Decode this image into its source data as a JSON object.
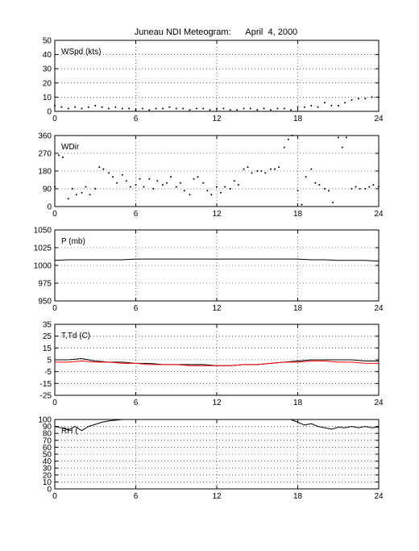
{
  "figure": {
    "title": "Juneau NDI Meteogram:      April  4, 2000"
  },
  "chart_data": [
    {
      "type": "scatter",
      "label": "WSpd (kts)",
      "xlim": [
        0,
        24
      ],
      "ylim": [
        0,
        50
      ],
      "xticks": [
        0,
        6,
        12,
        18,
        24
      ],
      "yticks": [
        0,
        10,
        20,
        30,
        40,
        50
      ],
      "grid": true,
      "series": [
        {
          "color": "#000000",
          "x": [
            0,
            0.5,
            1,
            1.5,
            2,
            2.5,
            3,
            3.5,
            4,
            4.5,
            5,
            5.5,
            6,
            6.5,
            7,
            7.5,
            8,
            8.5,
            9,
            9.5,
            10,
            10.5,
            11,
            11.5,
            12,
            12.5,
            13,
            13.5,
            14,
            14.5,
            15,
            15.5,
            16,
            16.5,
            17,
            17.5,
            18,
            18.5,
            19,
            19.5,
            20,
            20.5,
            21,
            21.5,
            22,
            22.5,
            23,
            23.5,
            24
          ],
          "y": [
            4,
            3,
            2,
            3,
            2,
            3,
            4,
            3,
            2,
            3,
            2,
            2,
            1,
            2,
            1,
            2,
            2,
            3,
            2,
            2,
            1,
            2,
            2,
            1,
            2,
            2,
            1,
            1,
            2,
            2,
            1,
            2,
            1,
            2,
            2,
            1,
            3,
            3,
            4,
            3,
            6,
            4,
            4,
            6,
            8,
            9,
            9,
            10,
            10
          ]
        }
      ]
    },
    {
      "type": "scatter",
      "label": "WDir",
      "xlim": [
        0,
        24
      ],
      "ylim": [
        0,
        360
      ],
      "xticks": [
        0,
        6,
        12,
        18,
        24
      ],
      "yticks": [
        0,
        90,
        180,
        270,
        360
      ],
      "grid": true,
      "series": [
        {
          "color": "#000000",
          "x": [
            0,
            0.3,
            0.6,
            1,
            1.3,
            1.6,
            2,
            2.3,
            2.6,
            3,
            3.3,
            3.6,
            4,
            4.3,
            4.6,
            5,
            5.3,
            5.6,
            6,
            6.3,
            6.6,
            7,
            7.3,
            7.6,
            8,
            8.3,
            8.6,
            9,
            9.3,
            9.6,
            10,
            10.3,
            10.6,
            11,
            11.3,
            11.6,
            12,
            12.3,
            12.6,
            13,
            13.3,
            13.6,
            14,
            14.3,
            14.6,
            15,
            15.3,
            15.6,
            16,
            16.3,
            16.6,
            17,
            17.3,
            17.6,
            18,
            18.3,
            18.6,
            19,
            19.3,
            19.6,
            20,
            20.3,
            20.6,
            21,
            21.3,
            21.6,
            22,
            22.3,
            22.6,
            23,
            23.3,
            23.6,
            24
          ],
          "y": [
            100,
            260,
            250,
            40,
            90,
            60,
            70,
            100,
            60,
            90,
            200,
            190,
            170,
            150,
            120,
            160,
            130,
            100,
            110,
            140,
            100,
            140,
            90,
            130,
            110,
            120,
            150,
            100,
            120,
            80,
            60,
            140,
            150,
            120,
            80,
            60,
            100,
            70,
            100,
            90,
            130,
            110,
            190,
            200,
            170,
            180,
            180,
            170,
            190,
            190,
            200,
            300,
            340,
            360,
            80,
            10,
            150,
            190,
            120,
            110,
            90,
            80,
            20,
            350,
            300,
            350,
            90,
            100,
            90,
            90,
            100,
            110,
            100
          ]
        }
      ]
    },
    {
      "type": "line",
      "label": "P (mb)",
      "xlim": [
        0,
        24
      ],
      "ylim": [
        950,
        1050
      ],
      "xticks": [
        0,
        6,
        12,
        18,
        24
      ],
      "yticks": [
        950,
        975,
        1000,
        1025,
        1050
      ],
      "grid": true,
      "series": [
        {
          "color": "#000000",
          "x": [
            0,
            1,
            2,
            3,
            4,
            5,
            6,
            7,
            8,
            9,
            10,
            11,
            12,
            13,
            14,
            15,
            16,
            17,
            18,
            19,
            20,
            21,
            22,
            23,
            24
          ],
          "y": [
            1007,
            1008,
            1008,
            1008,
            1008,
            1008,
            1009,
            1009,
            1009,
            1009,
            1009,
            1009,
            1009,
            1009,
            1009,
            1009,
            1009,
            1009,
            1009,
            1008,
            1008,
            1007,
            1007,
            1007,
            1006
          ]
        }
      ]
    },
    {
      "type": "line",
      "label": "T,Td (C)",
      "xlim": [
        0,
        24
      ],
      "ylim": [
        -25,
        35
      ],
      "xticks": [
        0,
        6,
        12,
        18,
        24
      ],
      "yticks": [
        -25,
        -15,
        -5,
        5,
        15,
        25,
        35
      ],
      "grid": true,
      "series": [
        {
          "color": "#000000",
          "x": [
            0,
            1,
            2,
            3,
            4,
            5,
            6,
            7,
            8,
            9,
            10,
            11,
            12,
            13,
            14,
            15,
            16,
            17,
            18,
            19,
            20,
            21,
            22,
            23,
            24
          ],
          "y": [
            5,
            5,
            6,
            4,
            3,
            3,
            2,
            2,
            1,
            1,
            1,
            1,
            0,
            0,
            1,
            1,
            2,
            3,
            4,
            5,
            5,
            5,
            5,
            4,
            4
          ]
        },
        {
          "color": "#ff0000",
          "x": [
            0,
            1,
            2,
            3,
            4,
            5,
            6,
            7,
            8,
            9,
            10,
            11,
            12,
            13,
            14,
            15,
            16,
            17,
            18,
            19,
            20,
            21,
            22,
            23,
            24
          ],
          "y": [
            3,
            3,
            4,
            3,
            3,
            2,
            2,
            1,
            1,
            1,
            0,
            0,
            0,
            0,
            1,
            1,
            2,
            3,
            3,
            4,
            4,
            3,
            3,
            2,
            2
          ]
        }
      ]
    },
    {
      "type": "line",
      "label": "RH (",
      "xlim": [
        0,
        24
      ],
      "ylim": [
        0,
        100
      ],
      "xticks": [
        0,
        6,
        12,
        18,
        24
      ],
      "yticks": [
        0,
        10,
        20,
        30,
        40,
        50,
        60,
        70,
        80,
        90,
        100
      ],
      "grid": true,
      "series": [
        {
          "color": "#000000",
          "x": [
            0,
            0.5,
            1,
            1.5,
            2,
            2.5,
            3,
            3.5,
            4,
            4.5,
            5,
            5.5,
            6,
            7,
            8,
            9,
            10,
            11,
            12,
            13,
            14,
            15,
            16,
            17,
            17.5,
            18,
            18.5,
            19,
            19.5,
            20,
            20.5,
            21,
            21.5,
            22,
            22.5,
            23,
            23.5,
            24
          ],
          "y": [
            90,
            88,
            85,
            90,
            84,
            90,
            93,
            96,
            98,
            99,
            100,
            100,
            100,
            100,
            100,
            100,
            100,
            100,
            100,
            100,
            100,
            100,
            100,
            100,
            100,
            96,
            92,
            94,
            90,
            88,
            86,
            89,
            88,
            90,
            88,
            90,
            88,
            89
          ]
        }
      ]
    }
  ]
}
